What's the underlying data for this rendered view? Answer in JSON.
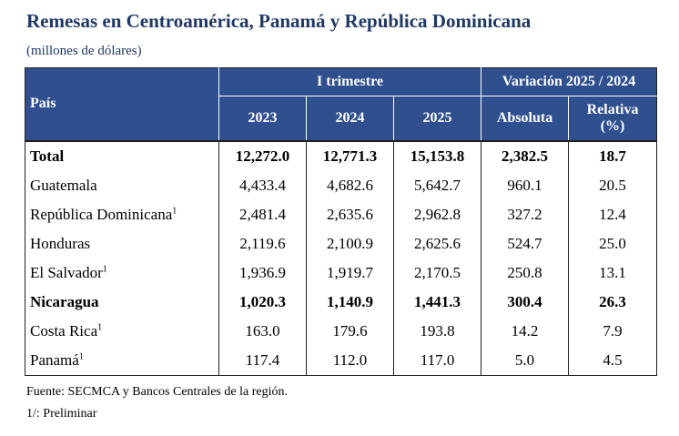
{
  "title": "Remesas en Centroamérica, Panamá y República Dominicana",
  "subtitle": "(millones de dólares)",
  "header": {
    "country": "País",
    "group_quarter": "I trimestre",
    "group_variation": "Variación 2025 / 2024",
    "years": [
      "2023",
      "2024",
      "2025"
    ],
    "absolute": "Absoluta",
    "relative": "Relativa",
    "relative_unit": "(%)"
  },
  "rows": [
    {
      "name": "Total",
      "sup": "",
      "bold": true,
      "v2023": "12,272.0",
      "v2024": "12,771.3",
      "v2025": "15,153.8",
      "abs": "2,382.5",
      "rel": "18.7"
    },
    {
      "name": "Guatemala",
      "sup": "",
      "bold": false,
      "v2023": "4,433.4",
      "v2024": "4,682.6",
      "v2025": "5,642.7",
      "abs": "960.1",
      "rel": "20.5"
    },
    {
      "name": "República Dominicana",
      "sup": "1",
      "bold": false,
      "v2023": "2,481.4",
      "v2024": "2,635.6",
      "v2025": "2,962.8",
      "abs": "327.2",
      "rel": "12.4"
    },
    {
      "name": "Honduras",
      "sup": "",
      "bold": false,
      "v2023": "2,119.6",
      "v2024": "2,100.9",
      "v2025": "2,625.6",
      "abs": "524.7",
      "rel": "25.0"
    },
    {
      "name": "El Salvador",
      "sup": "1",
      "bold": false,
      "v2023": "1,936.9",
      "v2024": "1,919.7",
      "v2025": "2,170.5",
      "abs": "250.8",
      "rel": "13.1"
    },
    {
      "name": "Nicaragua",
      "sup": "",
      "bold": true,
      "v2023": "1,020.3",
      "v2024": "1,140.9",
      "v2025": "1,441.3",
      "abs": "300.4",
      "rel": "26.3"
    },
    {
      "name": "Costa Rica",
      "sup": "1",
      "bold": false,
      "v2023": "163.0",
      "v2024": "179.6",
      "v2025": "193.8",
      "abs": "14.2",
      "rel": "7.9"
    },
    {
      "name": "Panamá",
      "sup": "1",
      "bold": false,
      "v2023": "117.4",
      "v2024": "112.0",
      "v2025": "117.0",
      "abs": "5.0",
      "rel": "4.5"
    }
  ],
  "notes": [
    "Fuente: SECMCA y Bancos Centrales de la región.",
    "1/: Preliminar"
  ],
  "colors": {
    "header_bg": "#2f4f8f",
    "title": "#1f3864"
  }
}
